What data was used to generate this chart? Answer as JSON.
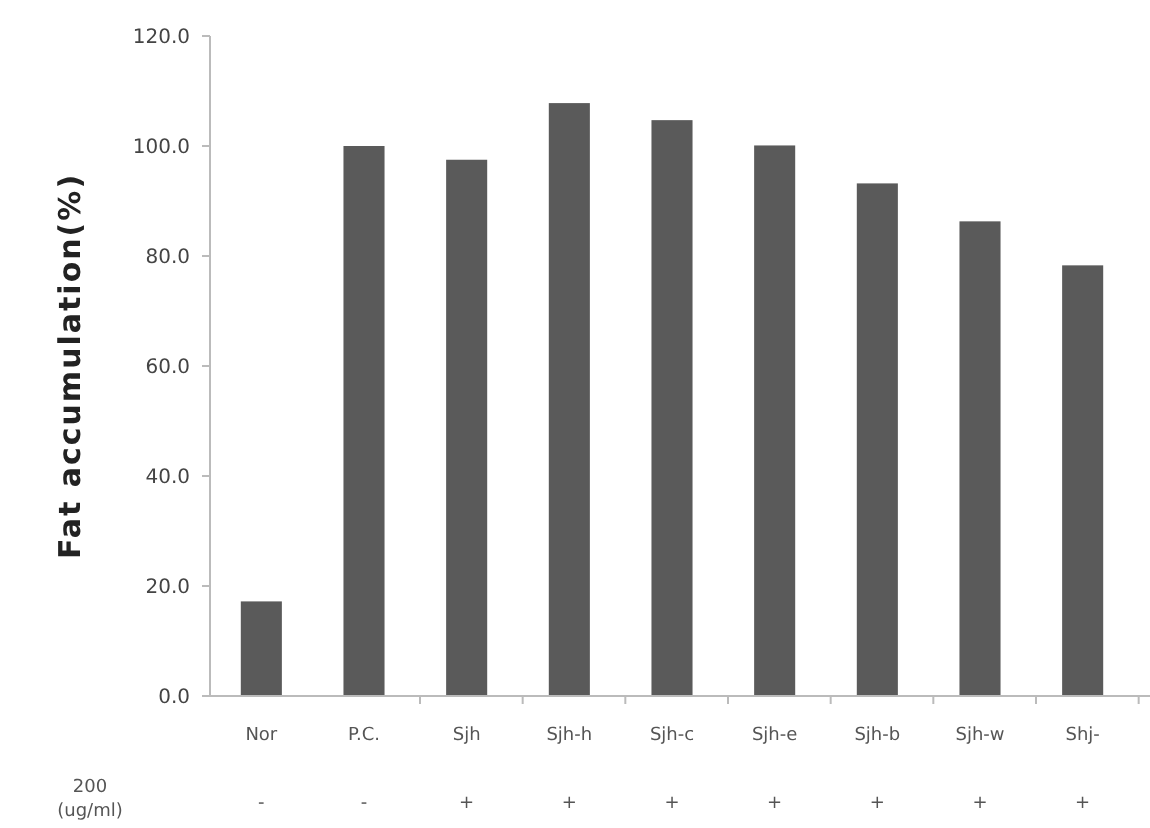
{
  "chart_data": {
    "type": "bar",
    "ylabel": "Fat accumulation(%)",
    "categories": [
      "Nor",
      "P.C.",
      "Sjh",
      "Sjh-h",
      "Sjh-c",
      "Sjh-e",
      "Sjh-b",
      "Sjh-w",
      "Shj-"
    ],
    "values": [
      17.2,
      100.0,
      97.5,
      107.8,
      104.7,
      100.1,
      93.2,
      86.3,
      78.3
    ],
    "color": "#5a5a5a",
    "ylim": [
      0,
      120
    ],
    "yticks": [
      {
        "value": 0,
        "label": "0.0"
      },
      {
        "value": 20,
        "label": "20.0"
      },
      {
        "value": 40,
        "label": "40.0"
      },
      {
        "value": 60,
        "label": "60.0"
      },
      {
        "value": 80,
        "label": "80.0"
      },
      {
        "value": 100,
        "label": "100.0"
      },
      {
        "value": 120,
        "label": "120.0"
      }
    ],
    "grid": false,
    "annotations": [
      "200\n(ug/ml)",
      "-",
      "-",
      "+",
      "+",
      "+",
      "+",
      "+",
      "+",
      "+"
    ]
  }
}
